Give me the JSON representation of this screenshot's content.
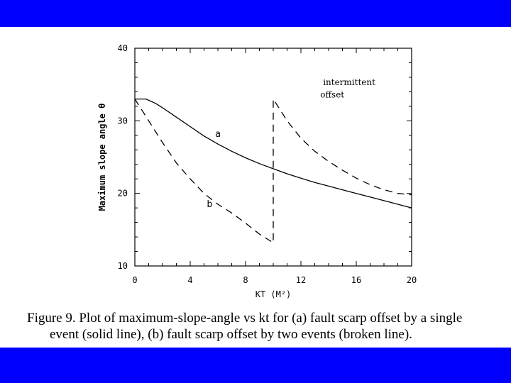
{
  "colors": {
    "band": "#0000ff",
    "ink": "#000000",
    "background": "#ffffff"
  },
  "caption": {
    "line1": "Figure 9.  Plot of maximum-slope-angle vs kt for (a) fault scarp offset by a single",
    "line2": "event (solid line), (b) fault scarp offset by two events (broken line)."
  },
  "chart_data": {
    "type": "line",
    "title": "",
    "xlabel": "KT (M²)",
    "ylabel": "Maximum slope angle θ",
    "xlim": [
      0,
      20
    ],
    "ylim": [
      10,
      40
    ],
    "x_ticks": [
      0,
      4,
      8,
      12,
      16,
      20
    ],
    "y_ticks": [
      10,
      20,
      30,
      40
    ],
    "grid": false,
    "legend": "none",
    "annotations": [
      {
        "text": "intermittent",
        "x": 13.6,
        "y": 34.9
      },
      {
        "text": "offset",
        "x": 13.4,
        "y": 33.2
      },
      {
        "text": "a",
        "x": 5.8,
        "y": 27.8
      },
      {
        "text": "b",
        "x": 5.2,
        "y": 18.1
      }
    ],
    "series": [
      {
        "style": "solid",
        "x": [
          0,
          0.8,
          1.5,
          2,
          3,
          4,
          5,
          6,
          7,
          8,
          9,
          10,
          11,
          12,
          13,
          14,
          15,
          16,
          17,
          18,
          19,
          20
        ],
        "y": [
          33,
          33,
          32.4,
          31.8,
          30.5,
          29.2,
          27.9,
          26.8,
          25.8,
          24.9,
          24.1,
          23.4,
          22.7,
          22.1,
          21.5,
          21,
          20.5,
          20,
          19.5,
          19,
          18.5,
          18
        ]
      },
      {
        "style": "dashed",
        "x": [
          0,
          1,
          2,
          3,
          4,
          5,
          6,
          7,
          8,
          9,
          10,
          10,
          11,
          12,
          13,
          14,
          15,
          16,
          17,
          18,
          19,
          20
        ],
        "y": [
          33,
          30,
          27,
          24.2,
          22,
          20,
          18.5,
          17.3,
          15.9,
          14.4,
          13.2,
          33,
          30,
          27.6,
          25.8,
          24.4,
          23.2,
          22.1,
          21.2,
          20.5,
          20,
          19.8
        ]
      }
    ]
  }
}
